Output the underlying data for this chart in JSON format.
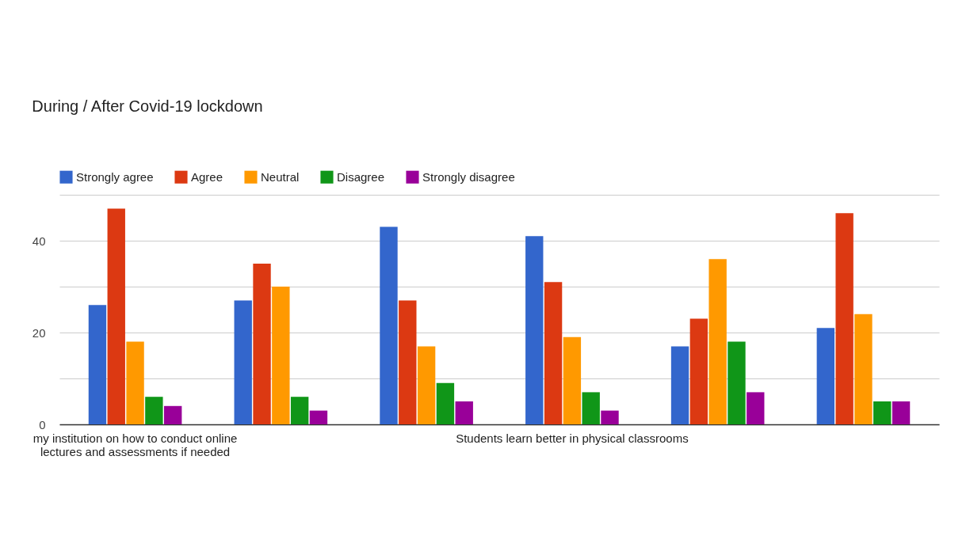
{
  "chart_data": {
    "type": "bar",
    "title": "During / After Covid-19 lockdown",
    "categories": [
      "my institution on how to conduct online lectures and assessments if needed",
      null,
      null,
      "Students learn better in physical classrooms",
      null,
      null
    ],
    "series": [
      {
        "name": "Strongly agree",
        "color": "#3366cc",
        "values": [
          26,
          27,
          43,
          41,
          17,
          21
        ]
      },
      {
        "name": "Agree",
        "color": "#dc3912",
        "values": [
          47,
          35,
          27,
          31,
          23,
          46
        ]
      },
      {
        "name": "Neutral",
        "color": "#ff9900",
        "values": [
          18,
          30,
          17,
          19,
          36,
          24
        ]
      },
      {
        "name": "Disagree",
        "color": "#109618",
        "values": [
          6,
          6,
          9,
          7,
          18,
          5
        ]
      },
      {
        "name": "Strongly disagree",
        "color": "#990099",
        "values": [
          4,
          3,
          5,
          3,
          7,
          5
        ]
      }
    ],
    "ylim": [
      0,
      50
    ],
    "yticks": [
      0,
      {
        "value": 10,
        "label": null
      },
      20,
      {
        "value": 30,
        "label": null
      },
      40,
      {
        "value": 50,
        "label": null
      }
    ],
    "grid": "y",
    "legend": "top left"
  }
}
